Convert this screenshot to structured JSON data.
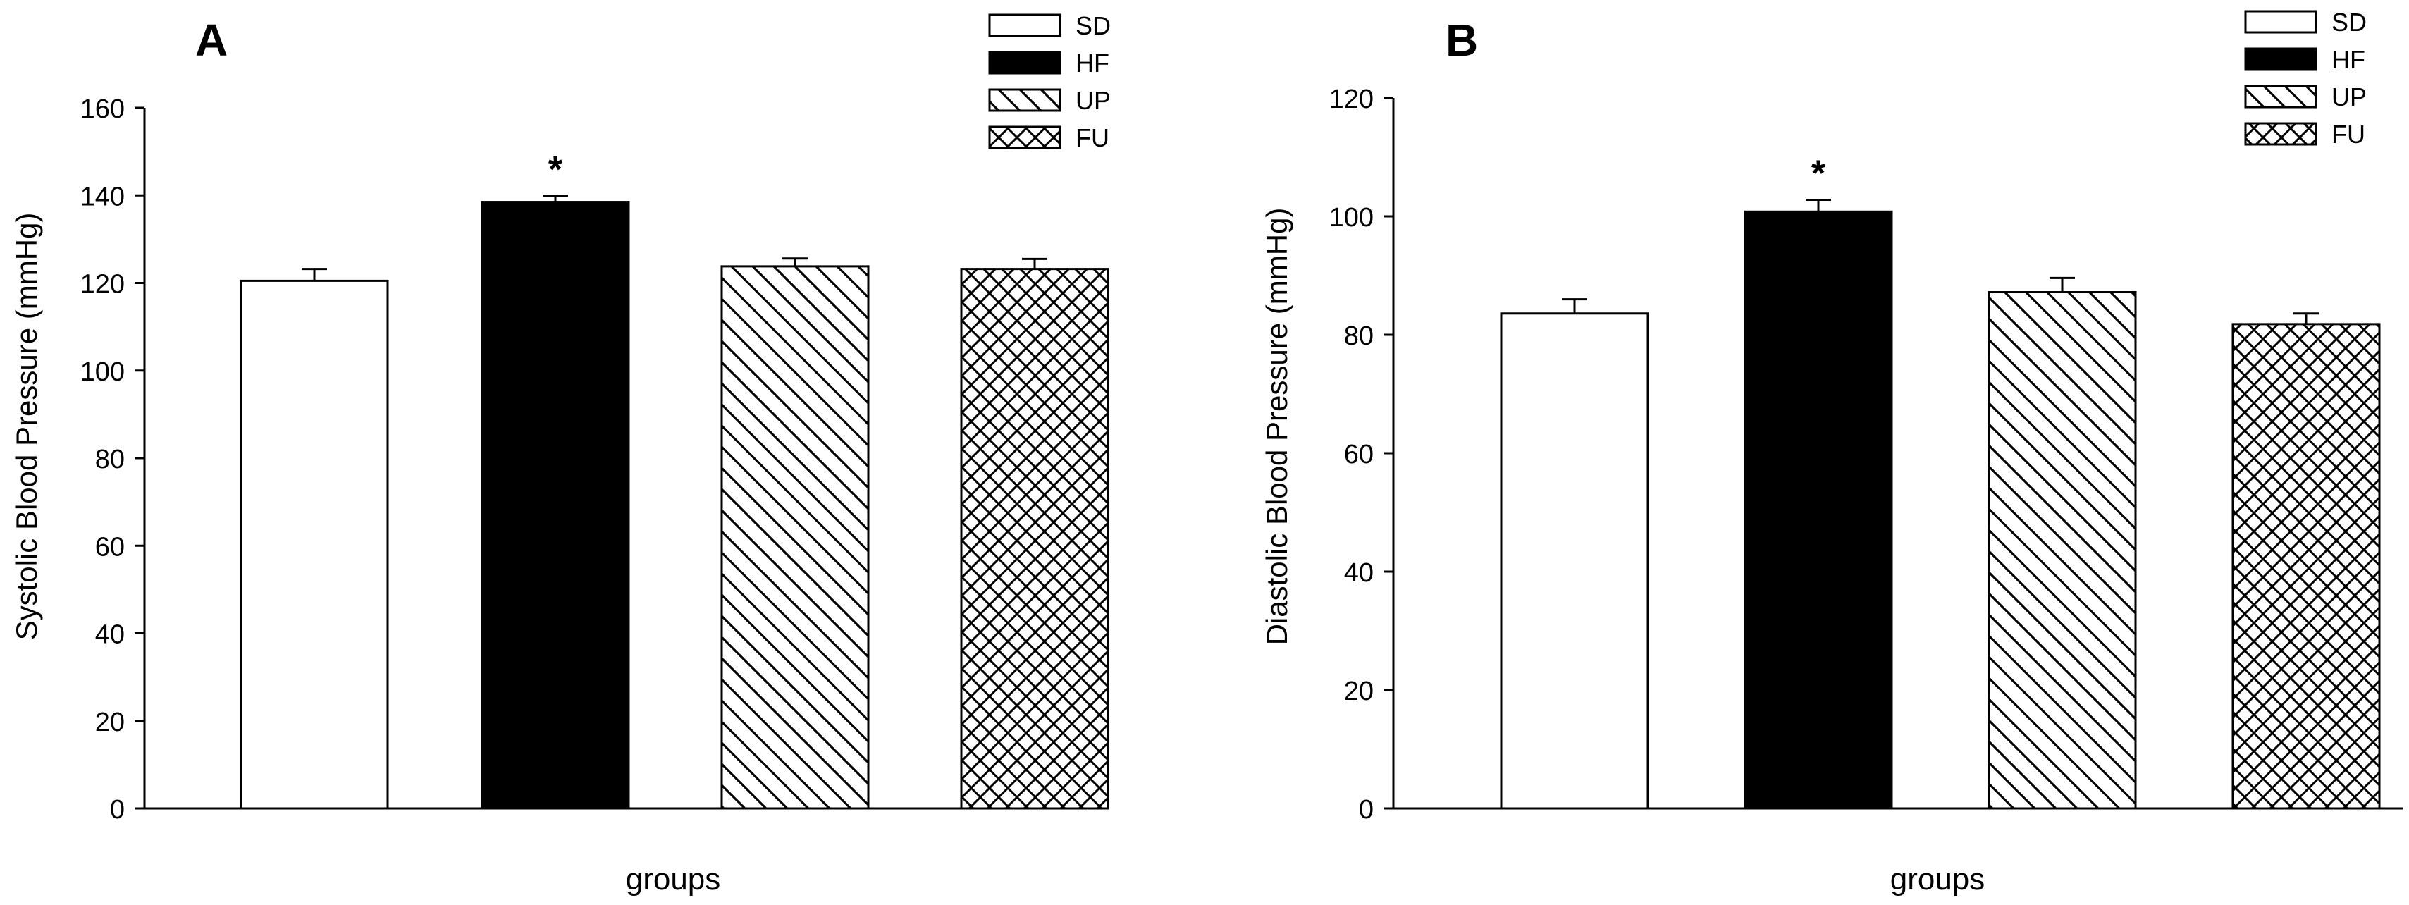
{
  "colors": {
    "axis": "#000000",
    "hf_fill": "#000000",
    "sd_fill": "#ffffff"
  },
  "chart_data": [
    {
      "panel_label": "A",
      "type": "bar",
      "xlabel": "groups",
      "ylabel": "Systolic Blood Pressure (mmHg)",
      "ylim": [
        0,
        160
      ],
      "yticks": [
        0,
        20,
        40,
        60,
        80,
        100,
        120,
        140,
        160
      ],
      "categories": [
        "SD",
        "HF",
        "UP",
        "FU"
      ],
      "values": [
        120.5,
        138.5,
        123.8,
        123.2
      ],
      "errors": [
        2.7,
        1.4,
        1.8,
        2.3
      ],
      "annotations": [
        {
          "category": "HF",
          "text": "*"
        }
      ],
      "legend": {
        "placement": "top-right",
        "entries": [
          {
            "label": "SD",
            "pattern": "white"
          },
          {
            "label": "HF",
            "pattern": "black"
          },
          {
            "label": "UP",
            "pattern": "diagonal-hatch"
          },
          {
            "label": "FU",
            "pattern": "cross-hatch"
          }
        ]
      },
      "grid": false
    },
    {
      "panel_label": "B",
      "type": "bar",
      "xlabel": "groups",
      "ylabel": "Diastolic Blood Pressure (mmHg)",
      "ylim": [
        0,
        120
      ],
      "yticks": [
        0,
        20,
        40,
        60,
        80,
        100,
        120
      ],
      "categories": [
        "SD",
        "HF",
        "UP",
        "FU"
      ],
      "values": [
        83.6,
        100.8,
        87.2,
        81.8
      ],
      "errors": [
        2.4,
        2.0,
        2.4,
        1.8
      ],
      "annotations": [
        {
          "category": "HF",
          "text": "*"
        }
      ],
      "legend": {
        "placement": "top-right",
        "entries": [
          {
            "label": "SD",
            "pattern": "white"
          },
          {
            "label": "HF",
            "pattern": "black"
          },
          {
            "label": "UP",
            "pattern": "diagonal-hatch"
          },
          {
            "label": "FU",
            "pattern": "cross-hatch"
          }
        ]
      },
      "grid": false
    }
  ]
}
